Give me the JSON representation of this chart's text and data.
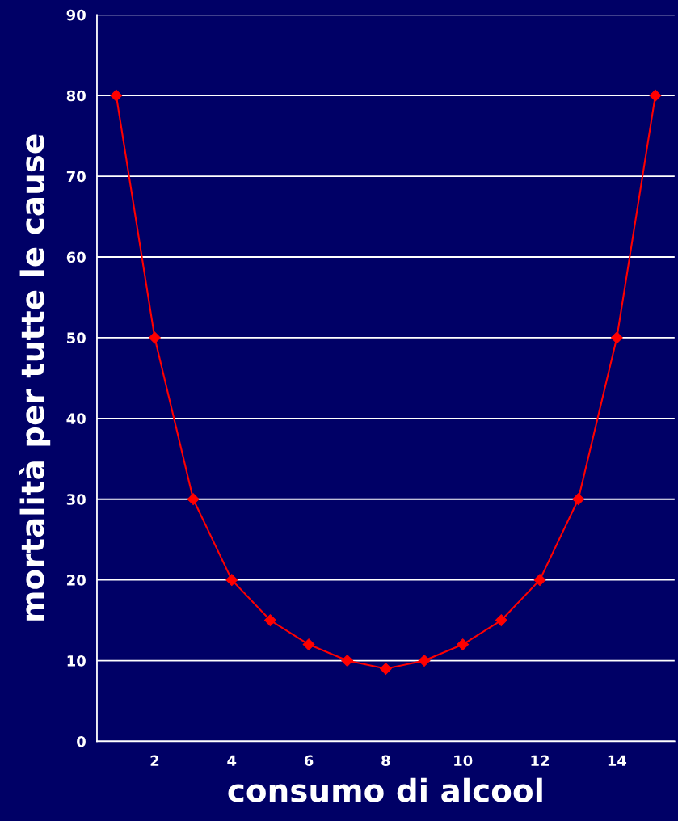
{
  "chart_data": {
    "type": "line",
    "xlabel": "consumo di alcool",
    "ylabel": "mortalità per tutte le cause",
    "categories": [
      null,
      "2",
      null,
      "4",
      null,
      "6",
      null,
      "8",
      null,
      "10",
      null,
      "12",
      null,
      "14",
      null
    ],
    "series": [
      {
        "color": "#ff0000",
        "values": [
          80,
          50,
          30,
          20,
          15,
          12,
          10,
          9,
          10,
          12,
          15,
          20,
          30,
          50,
          80
        ]
      }
    ],
    "ylim": [
      0,
      90
    ],
    "yticks": [
      0,
      10,
      20,
      30,
      40,
      50,
      60,
      70,
      80,
      90
    ],
    "grid": "y",
    "marker": "diamond",
    "line_style": "solid",
    "legend": false
  }
}
